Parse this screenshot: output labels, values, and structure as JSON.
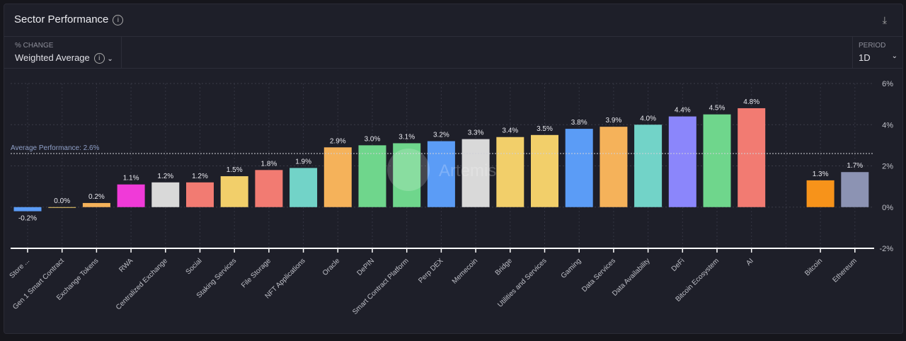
{
  "header": {
    "title": "Sector Performance",
    "info_icon": "info-icon",
    "download_icon": "download-icon"
  },
  "controls": {
    "metric_label": "% CHANGE",
    "metric_value": "Weighted Average",
    "period_label": "PERIOD",
    "period_value": "1D"
  },
  "watermark": "Artemis",
  "chart_data": {
    "type": "bar",
    "categories": [
      "Store ...",
      "Gen 1 Smart Contract",
      "Exchange Tokens",
      "RWA",
      "Centralized Exchange",
      "Social",
      "Staking Services",
      "File Storage",
      "NFT Applications",
      "Oracle",
      "DePIN",
      "Smart Contract Platform",
      "Perp DEX",
      "Memecoin",
      "Bridge",
      "Utilities and Services",
      "Gaming",
      "Data Services",
      "Data Availability",
      "DeFi",
      "Bitcoin Ecosystem",
      "AI",
      "",
      "Bitcoin",
      "Ethereum"
    ],
    "values": [
      -0.2,
      0.0,
      0.2,
      1.1,
      1.2,
      1.2,
      1.5,
      1.8,
      1.9,
      2.9,
      3.0,
      3.1,
      3.2,
      3.3,
      3.4,
      3.5,
      3.8,
      3.9,
      4.0,
      4.4,
      4.5,
      4.8,
      null,
      1.3,
      1.7
    ],
    "data_labels": [
      "-0.2%",
      "0.0%",
      "0.2%",
      "1.1%",
      "1.2%",
      "1.2%",
      "1.5%",
      "1.8%",
      "1.9%",
      "2.9%",
      "3.0%",
      "3.1%",
      "3.2%",
      "3.3%",
      "3.4%",
      "3.5%",
      "3.8%",
      "3.9%",
      "4.0%",
      "4.4%",
      "4.5%",
      "4.8%",
      "",
      "1.3%",
      "1.7%"
    ],
    "colors": [
      "#5b9cf6",
      "#f2cf6a",
      "#f5b25a",
      "#f03ad8",
      "#d9d9d9",
      "#f27b72",
      "#f2cf6a",
      "#f27b72",
      "#72d3c8",
      "#f5b25a",
      "#6fd68c",
      "#6fd68c",
      "#5b9cf6",
      "#d9d9d9",
      "#f2cf6a",
      "#f2cf6a",
      "#5b9cf6",
      "#f5b25a",
      "#72d3c8",
      "#8b86fb",
      "#6fd68c",
      "#f27b72",
      "",
      "#f7931a",
      "#8c93b3"
    ],
    "ylim": [
      -2,
      6
    ],
    "yticks": [
      -2,
      0,
      2,
      4,
      6
    ],
    "ytick_labels": [
      "-2%",
      "0%",
      "2%",
      "4%",
      "6%"
    ],
    "reference_line": {
      "value": 2.6,
      "label": "Average Performance: 2.6%"
    },
    "grid": true
  }
}
